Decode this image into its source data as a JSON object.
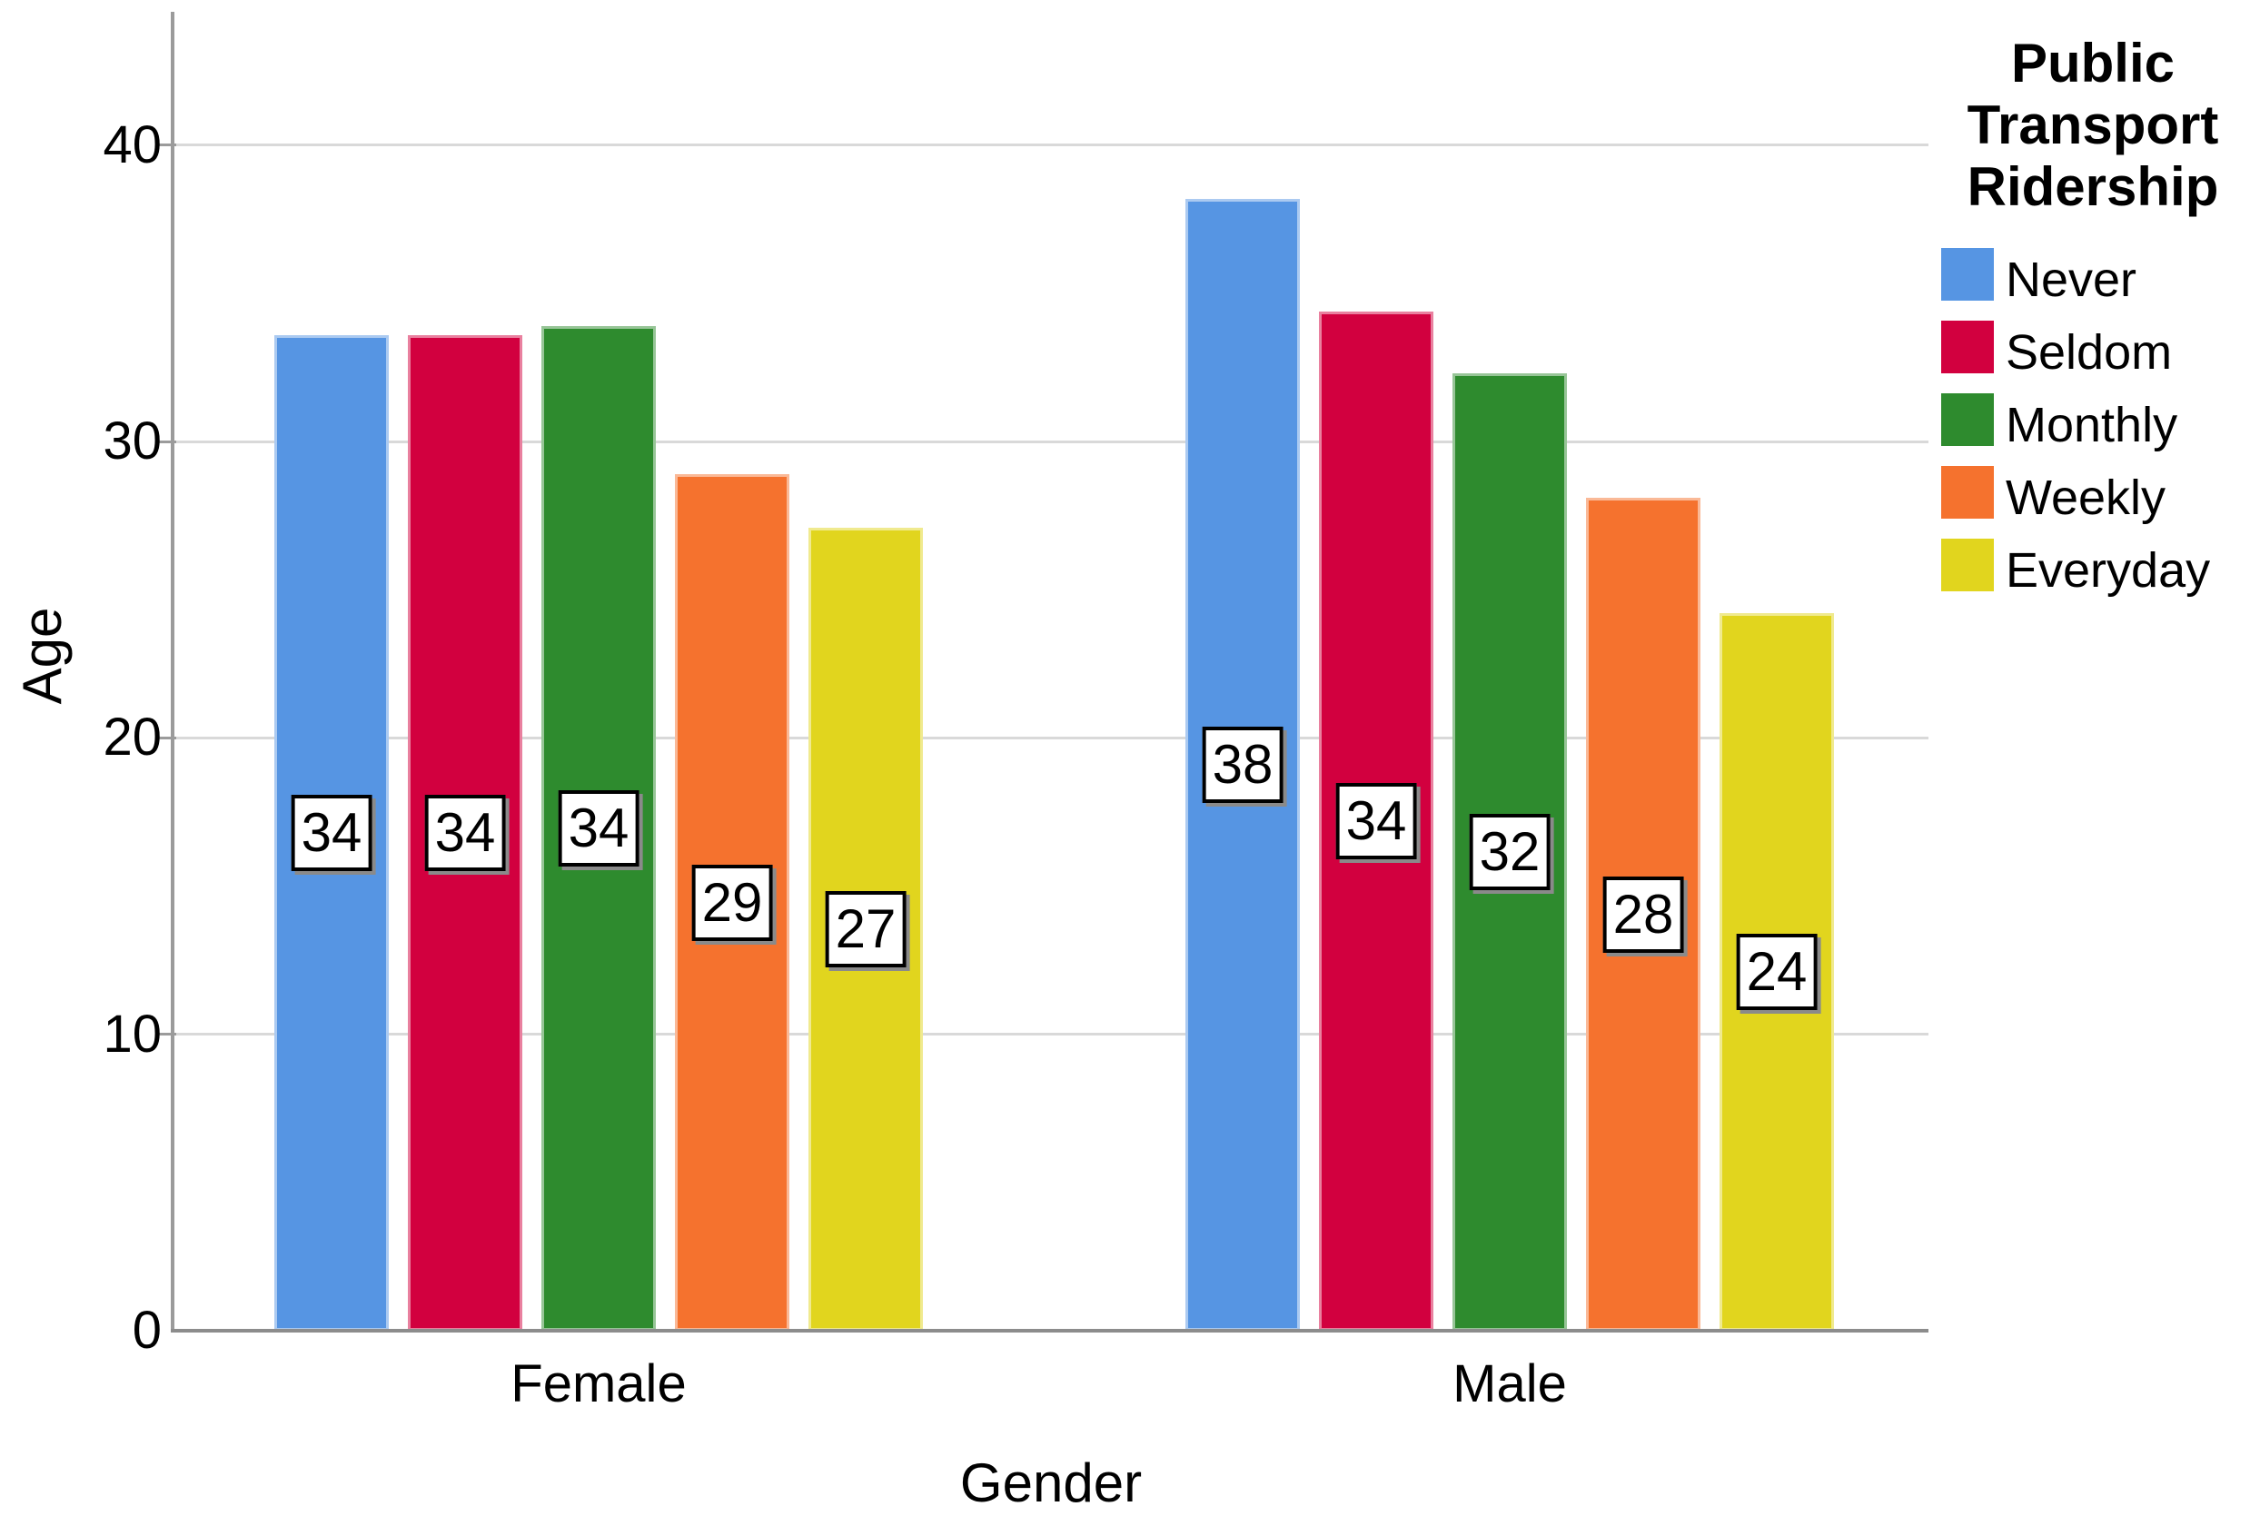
{
  "chart_data": {
    "type": "bar",
    "categories": [
      "Female",
      "Male"
    ],
    "series": [
      {
        "name": "Never",
        "color": "#5695E3",
        "values": [
          33.6,
          38.2
        ],
        "data_labels": [
          "34",
          "38"
        ]
      },
      {
        "name": "Seldom",
        "color": "#D2003F",
        "values": [
          33.6,
          34.4
        ],
        "data_labels": [
          "34",
          "34"
        ]
      },
      {
        "name": "Monthly",
        "color": "#2E8B2E",
        "values": [
          33.9,
          32.3
        ],
        "data_labels": [
          "34",
          "32"
        ]
      },
      {
        "name": "Weekly",
        "color": "#F5722E",
        "values": [
          28.9,
          28.1
        ],
        "data_labels": [
          "29",
          "28"
        ]
      },
      {
        "name": "Everyday",
        "color": "#E1D51E",
        "values": [
          27.1,
          24.2
        ],
        "data_labels": [
          "27",
          "24"
        ]
      }
    ],
    "xlabel": "Gender",
    "ylabel": "Age",
    "yticks": [
      0,
      10,
      20,
      30,
      40
    ],
    "ylim": [
      0,
      44.5
    ],
    "grid": true,
    "legend": {
      "title": "Public Transport Ridership",
      "title_lines": [
        "Public",
        "Transport",
        "Ridership"
      ],
      "position": "right"
    },
    "colors": {
      "axis_line": "#9B9B9B",
      "baseline": "#8C8C8C",
      "gridline": "#D9D9D9",
      "text": "#000000",
      "background": "#FFFFFF",
      "label_box_bg": "#FFFFFF",
      "label_box_border": "#000000"
    }
  }
}
